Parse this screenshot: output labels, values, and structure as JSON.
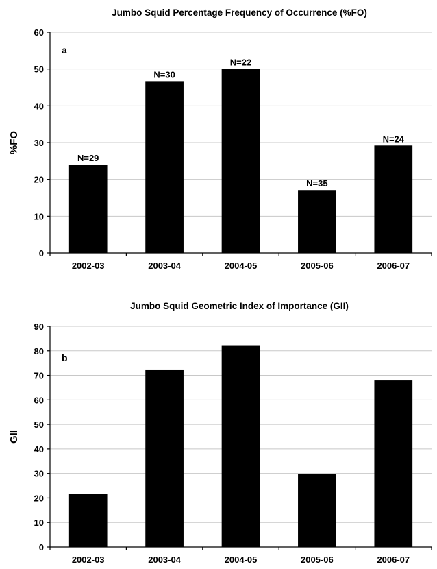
{
  "chart_data": [
    {
      "type": "bar",
      "title": "Jumbo Squid Percentage Frequency of Occurrence (%FO)",
      "panel_label": "a",
      "ylabel": "%FO",
      "xlabel": "",
      "ylim": [
        0,
        60
      ],
      "ytick_step": 10,
      "yticks": [
        "0",
        "10",
        "20",
        "30",
        "40",
        "50",
        "60"
      ],
      "grid": true,
      "categories": [
        "2002-03",
        "2003-04",
        "2004-05",
        "2005-06",
        "2006-07"
      ],
      "values": [
        24,
        46.7,
        50,
        17.1,
        29.2
      ],
      "data_labels": [
        "N=29",
        "N=30",
        "N=22",
        "N=35",
        "N=24"
      ]
    },
    {
      "type": "bar",
      "title": "Jumbo Squid Geometric Index of Importance (GII)",
      "panel_label": "b",
      "ylabel": "GII",
      "xlabel": "",
      "ylim": [
        0,
        90
      ],
      "ytick_step": 10,
      "yticks": [
        "0",
        "10",
        "20",
        "30",
        "40",
        "50",
        "60",
        "70",
        "80",
        "90"
      ],
      "grid": true,
      "categories": [
        "2002-03",
        "2003-04",
        "2004-05",
        "2005-06",
        "2006-07"
      ],
      "values": [
        21.7,
        72.4,
        82.3,
        29.7,
        67.9
      ],
      "data_labels": []
    }
  ]
}
